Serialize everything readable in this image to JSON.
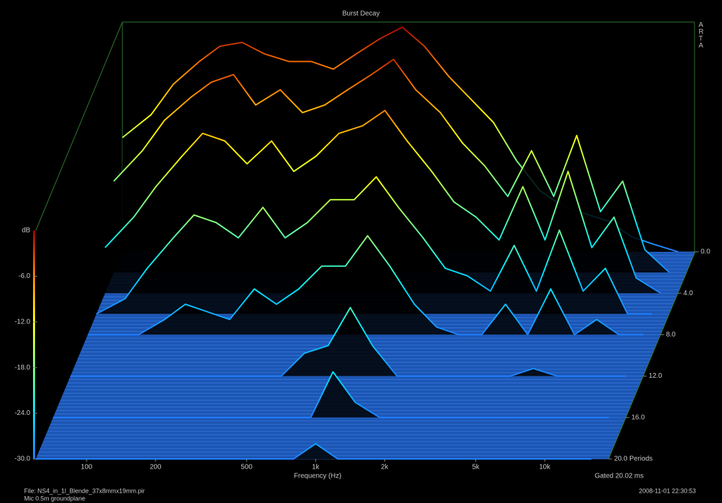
{
  "chart_data": {
    "type": "waterfall",
    "title": "Burst Decay",
    "brand": "ARTA",
    "x_label": "Frequency (Hz)",
    "z_label": "dB",
    "gate_note": "Gated 20.02 ms",
    "file_note": "File: NS4_in_1l_Blende_37x8mmx19mm.pir",
    "mic_note": "Mic 0.5m groundplane",
    "timestamp": "2008-11-01  22:30:53",
    "log_x": true,
    "xlim": [
      60,
      19000
    ],
    "xticks": [
      100,
      200,
      500,
      {
        "value": 1000,
        "label": "1k"
      },
      {
        "value": 2000,
        "label": "2k"
      },
      {
        "value": 5000,
        "label": "5k"
      },
      {
        "value": 10000,
        "label": "10k"
      }
    ],
    "zlim": [
      -30,
      0
    ],
    "zticks": [
      {
        "value": -6,
        "label": "-6.0"
      },
      {
        "value": -12,
        "label": "-12.0"
      },
      {
        "value": -18,
        "label": "-18.0"
      },
      {
        "value": -24,
        "label": "-24.0"
      },
      {
        "value": -30,
        "label": "-30.0"
      }
    ],
    "tlim": [
      0,
      20
    ],
    "tticks": [
      {
        "value": 0,
        "label": "0.0"
      },
      {
        "value": 4,
        "label": "4.0"
      },
      {
        "value": 8,
        "label": "8.0"
      },
      {
        "value": 12,
        "label": "12.0"
      },
      {
        "value": 16,
        "label": "16.0"
      },
      {
        "value": 20,
        "label": "20.0 Periods"
      }
    ],
    "colorscale": [
      "#1e7fff",
      "#00e8ff",
      "#80ff80",
      "#ffff00",
      "#ff8000",
      "#a00000"
    ],
    "floor_color": "#1d56b4",
    "x": [
      60,
      80,
      100,
      130,
      160,
      200,
      250,
      320,
      400,
      500,
      630,
      800,
      1000,
      1250,
      1600,
      2000,
      2500,
      3150,
      4000,
      5000,
      6300,
      8000,
      10000,
      12500,
      16000
    ],
    "slices": [
      {
        "t": 0,
        "values": [
          -15,
          -12,
          -8,
          -5,
          -3,
          -2.5,
          -4,
          -5,
          -5,
          -6,
          -4,
          -2,
          -0.5,
          -3,
          -7,
          -10,
          -13,
          -18,
          -22,
          -24,
          -25,
          -26,
          -28,
          -29,
          -30
        ]
      },
      {
        "t": 2,
        "values": [
          -18,
          -14,
          -10,
          -7,
          -5,
          -4,
          -8,
          -6,
          -9,
          -8,
          -6,
          -4,
          -2,
          -6,
          -9,
          -13,
          -16,
          -20,
          -14,
          -20,
          -12,
          -22,
          -18,
          -27,
          -30
        ]
      },
      {
        "t": 4,
        "values": [
          -24,
          -20,
          -16,
          -12,
          -9,
          -10,
          -13,
          -10,
          -14,
          -12,
          -9,
          -8,
          -6,
          -10,
          -14,
          -18,
          -20,
          -23,
          -16,
          -23,
          -14,
          -24,
          -20,
          -28,
          -30
        ]
      },
      {
        "t": 6,
        "values": [
          -30,
          -28,
          -24,
          -20,
          -17,
          -18,
          -20,
          -16,
          -20,
          -18,
          -15,
          -15,
          -12,
          -16,
          -20,
          -24,
          -25,
          -27,
          -21,
          -27,
          -19,
          -27,
          -24,
          -30,
          -30
        ]
      },
      {
        "t": 8,
        "values": [
          -30,
          -30,
          -30,
          -28,
          -26,
          -27,
          -28,
          -24,
          -26,
          -24,
          -21,
          -21,
          -17,
          -21,
          -26,
          -29,
          -30,
          -30,
          -26,
          -30,
          -24,
          -30,
          -28,
          -30,
          -30
        ]
      },
      {
        "t": 12,
        "values": [
          -30,
          -30,
          -30,
          -30,
          -30,
          -30,
          -30,
          -30,
          -30,
          -30,
          -27,
          -26,
          -21,
          -26,
          -30,
          -30,
          -30,
          -30,
          -30,
          -30,
          -29,
          -30,
          -30,
          -30,
          -30
        ]
      },
      {
        "t": 16,
        "values": [
          -30,
          -30,
          -30,
          -30,
          -30,
          -30,
          -30,
          -30,
          -30,
          -30,
          -30,
          -30,
          -24,
          -28,
          -30,
          -30,
          -30,
          -30,
          -30,
          -30,
          -30,
          -30,
          -30,
          -30,
          -30
        ]
      },
      {
        "t": 20,
        "values": [
          -30,
          -30,
          -30,
          -30,
          -30,
          -30,
          -30,
          -30,
          -30,
          -30,
          -30,
          -30,
          -28,
          -30,
          -30,
          -30,
          -30,
          -30,
          -30,
          -30,
          -30,
          -30,
          -30,
          -30,
          -30
        ]
      }
    ]
  }
}
